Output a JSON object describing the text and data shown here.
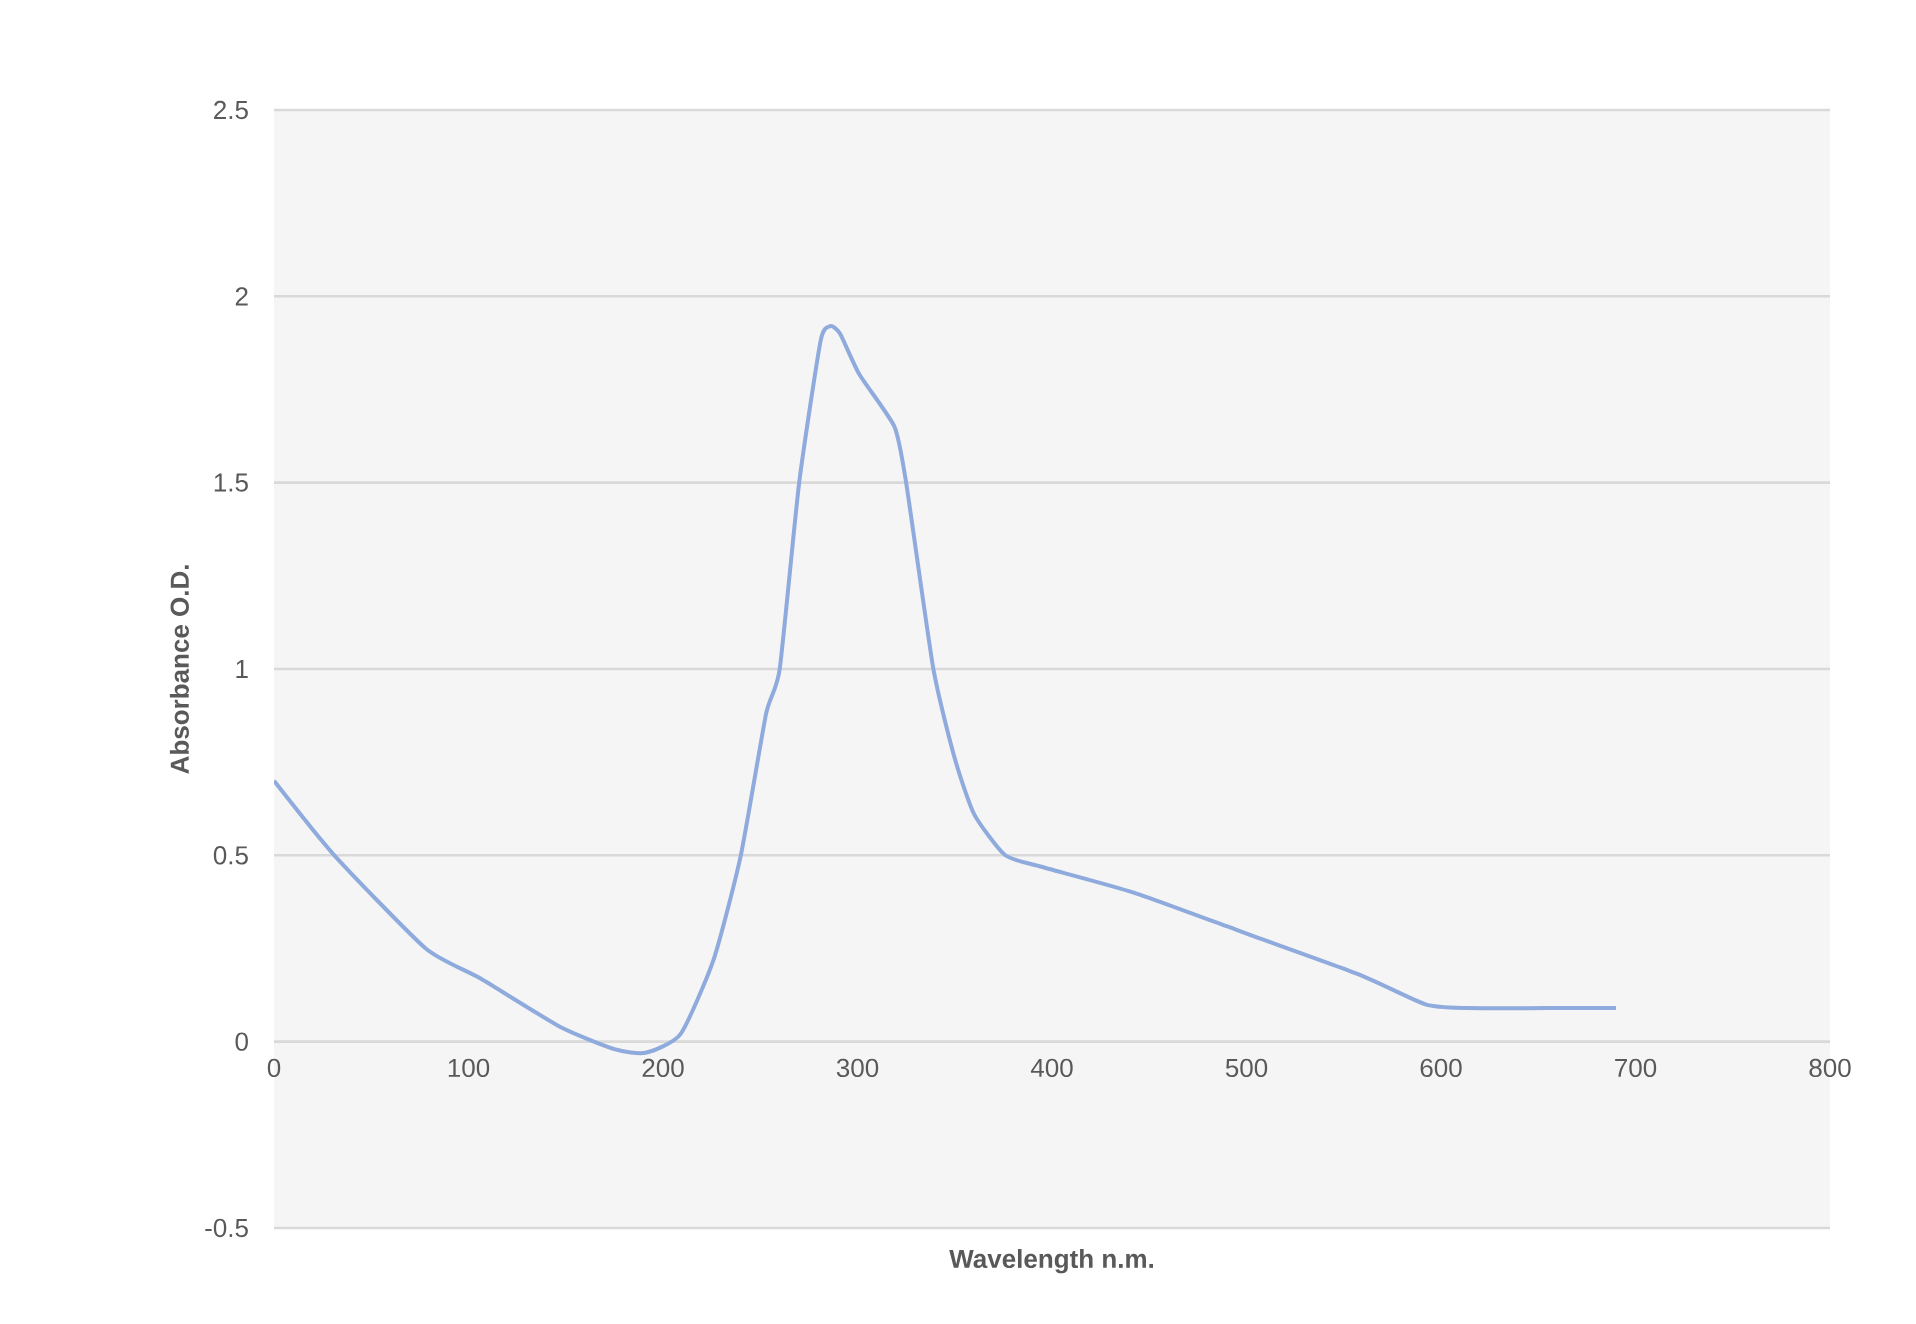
{
  "chart_data": {
    "type": "line",
    "xlabel": "Wavelength n.m.",
    "ylabel": "Absorbance O.D.",
    "x": [
      0,
      31,
      78,
      106,
      147,
      175,
      191,
      209,
      226,
      240,
      253,
      260,
      270,
      281,
      286,
      291,
      301,
      319,
      325,
      339,
      350,
      360,
      376,
      394,
      442,
      500,
      558,
      592,
      613,
      654,
      690
    ],
    "series": [
      {
        "color": "#8faadc",
        "values": [
          0.7,
          0.5,
          0.25,
          0.17,
          0.04,
          -0.02,
          -0.03,
          0.02,
          0.22,
          0.5,
          0.88,
          1.0,
          1.5,
          1.88,
          1.92,
          1.9,
          1.79,
          1.65,
          1.5,
          1.0,
          0.76,
          0.61,
          0.5,
          0.47,
          0.4,
          0.29,
          0.18,
          0.1,
          0.09,
          0.09,
          0.09
        ]
      }
    ],
    "xlim": [
      0,
      800
    ],
    "xticks": [
      0,
      100,
      200,
      300,
      400,
      500,
      600,
      700,
      800
    ],
    "ylim": [
      -0.5,
      2.5
    ],
    "yticks": [
      -0.5,
      0,
      0.5,
      1,
      1.5,
      2,
      2.5
    ],
    "grid": "y",
    "marker": "none",
    "line_style": "solid"
  }
}
